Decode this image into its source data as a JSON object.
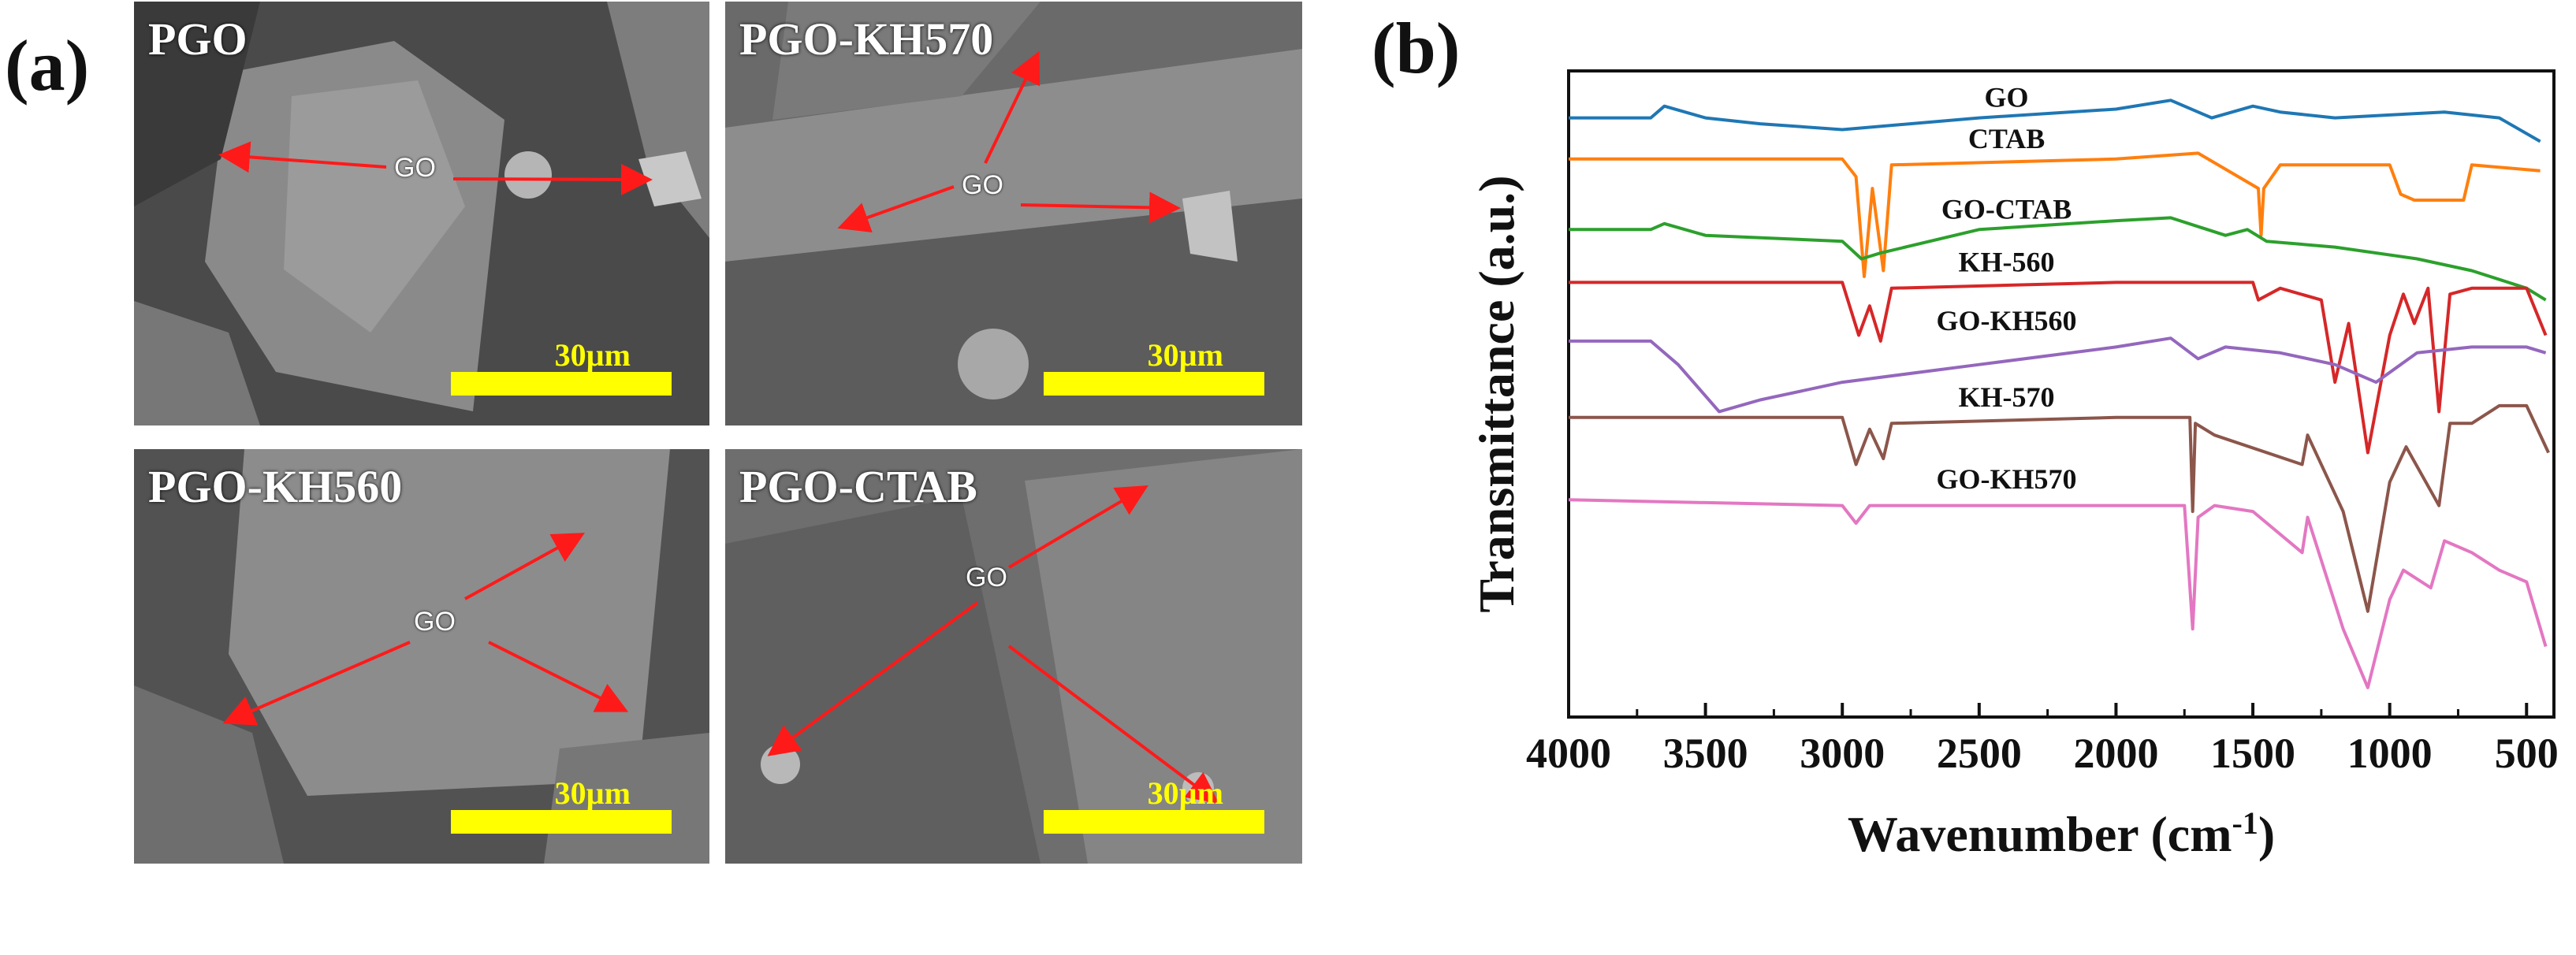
{
  "panel_a": {
    "letter": "(a)",
    "panels": [
      {
        "label": "PGO",
        "go": "GO",
        "scale": "30µm"
      },
      {
        "label": "PGO-KH570",
        "go": "GO",
        "scale": "30µm"
      },
      {
        "label": "PGO-KH560",
        "go": "GO",
        "scale": "30µm"
      },
      {
        "label": "PGO-CTAB",
        "go": "GO",
        "scale": "30µm"
      }
    ]
  },
  "chart_data": {
    "type": "line",
    "panel_letter": "(b)",
    "xlabel": "Wavenumber (cm",
    "xlabel_sup": "-1",
    "xlabel_close": ")",
    "ylabel": "Transmittance (a.u.)",
    "xlim": [
      4000,
      400
    ],
    "ylim": [
      0,
      100
    ],
    "xticks": [
      4000,
      3500,
      3000,
      2500,
      2000,
      1500,
      1000,
      500
    ],
    "series": [
      {
        "name": "GO",
        "color": "#1f77b4",
        "baseline": 92,
        "points": [
          [
            4000,
            92
          ],
          [
            3700,
            92
          ],
          [
            3650,
            94
          ],
          [
            3500,
            92
          ],
          [
            3300,
            91
          ],
          [
            3000,
            90
          ],
          [
            2500,
            92
          ],
          [
            2000,
            93.5
          ],
          [
            1800,
            95
          ],
          [
            1700,
            93
          ],
          [
            1650,
            92
          ],
          [
            1500,
            94
          ],
          [
            1400,
            93
          ],
          [
            1200,
            92
          ],
          [
            1000,
            92.5
          ],
          [
            800,
            93
          ],
          [
            600,
            92
          ],
          [
            450,
            88
          ]
        ]
      },
      {
        "name": "CTAB",
        "color": "#ff7f0e",
        "baseline": 85,
        "points": [
          [
            4000,
            85
          ],
          [
            3000,
            85
          ],
          [
            2950,
            82
          ],
          [
            2920,
            65
          ],
          [
            2890,
            80
          ],
          [
            2850,
            66
          ],
          [
            2820,
            84
          ],
          [
            2000,
            85
          ],
          [
            1700,
            86
          ],
          [
            1480,
            80
          ],
          [
            1470,
            72
          ],
          [
            1460,
            80
          ],
          [
            1400,
            84
          ],
          [
            1000,
            84
          ],
          [
            960,
            79
          ],
          [
            910,
            78
          ],
          [
            730,
            78
          ],
          [
            700,
            84
          ],
          [
            450,
            83
          ]
        ]
      },
      {
        "name": "GO-CTAB",
        "color": "#2ca02c",
        "baseline": 73,
        "points": [
          [
            4000,
            73
          ],
          [
            3700,
            73
          ],
          [
            3650,
            74
          ],
          [
            3500,
            72
          ],
          [
            3000,
            71
          ],
          [
            2930,
            68
          ],
          [
            2860,
            69
          ],
          [
            2500,
            73
          ],
          [
            2000,
            74.5
          ],
          [
            1800,
            75
          ],
          [
            1600,
            72
          ],
          [
            1520,
            73
          ],
          [
            1450,
            71
          ],
          [
            1200,
            70
          ],
          [
            900,
            68
          ],
          [
            700,
            66
          ],
          [
            500,
            63
          ],
          [
            430,
            61
          ]
        ]
      },
      {
        "name": "KH-560",
        "color": "#d62728",
        "baseline": 64,
        "points": [
          [
            4000,
            64
          ],
          [
            3000,
            64
          ],
          [
            2940,
            55
          ],
          [
            2900,
            60
          ],
          [
            2860,
            54
          ],
          [
            2820,
            63
          ],
          [
            2000,
            64
          ],
          [
            1500,
            64
          ],
          [
            1480,
            61
          ],
          [
            1400,
            63
          ],
          [
            1250,
            61
          ],
          [
            1200,
            47
          ],
          [
            1150,
            57
          ],
          [
            1080,
            35
          ],
          [
            1000,
            55
          ],
          [
            950,
            62
          ],
          [
            910,
            57
          ],
          [
            860,
            63
          ],
          [
            820,
            42
          ],
          [
            780,
            62
          ],
          [
            700,
            63
          ],
          [
            500,
            63
          ],
          [
            430,
            55
          ]
        ]
      },
      {
        "name": "GO-KH560",
        "color": "#9467bd",
        "baseline": 54,
        "points": [
          [
            4000,
            54
          ],
          [
            3700,
            54
          ],
          [
            3600,
            50
          ],
          [
            3450,
            42
          ],
          [
            3300,
            44
          ],
          [
            3000,
            47
          ],
          [
            2500,
            50
          ],
          [
            2000,
            53
          ],
          [
            1800,
            54.5
          ],
          [
            1700,
            51
          ],
          [
            1600,
            53
          ],
          [
            1400,
            52
          ],
          [
            1200,
            50
          ],
          [
            1050,
            47
          ],
          [
            900,
            52
          ],
          [
            700,
            53
          ],
          [
            500,
            53
          ],
          [
            430,
            52
          ]
        ]
      },
      {
        "name": "KH-570",
        "color": "#8c564b",
        "baseline": 41,
        "points": [
          [
            4000,
            41
          ],
          [
            3000,
            41
          ],
          [
            2950,
            33
          ],
          [
            2900,
            39
          ],
          [
            2850,
            34
          ],
          [
            2820,
            40
          ],
          [
            2000,
            41
          ],
          [
            1730,
            41
          ],
          [
            1720,
            25
          ],
          [
            1710,
            40
          ],
          [
            1640,
            38
          ],
          [
            1320,
            33
          ],
          [
            1300,
            38
          ],
          [
            1170,
            25
          ],
          [
            1080,
            8
          ],
          [
            1000,
            30
          ],
          [
            940,
            36
          ],
          [
            820,
            26
          ],
          [
            780,
            40
          ],
          [
            700,
            40
          ],
          [
            600,
            43
          ],
          [
            500,
            43
          ],
          [
            420,
            35
          ]
        ]
      },
      {
        "name": "GO-KH570",
        "color": "#e377c2",
        "baseline": 27,
        "points": [
          [
            4000,
            27
          ],
          [
            3000,
            26
          ],
          [
            2950,
            23
          ],
          [
            2900,
            26
          ],
          [
            2000,
            26
          ],
          [
            1750,
            26
          ],
          [
            1720,
            5
          ],
          [
            1700,
            24
          ],
          [
            1640,
            26
          ],
          [
            1500,
            25
          ],
          [
            1320,
            18
          ],
          [
            1300,
            24
          ],
          [
            1170,
            5
          ],
          [
            1080,
            -5
          ],
          [
            1000,
            10
          ],
          [
            950,
            15
          ],
          [
            850,
            12
          ],
          [
            800,
            20
          ],
          [
            700,
            18
          ],
          [
            600,
            15
          ],
          [
            500,
            13
          ],
          [
            430,
            2
          ]
        ]
      }
    ]
  }
}
